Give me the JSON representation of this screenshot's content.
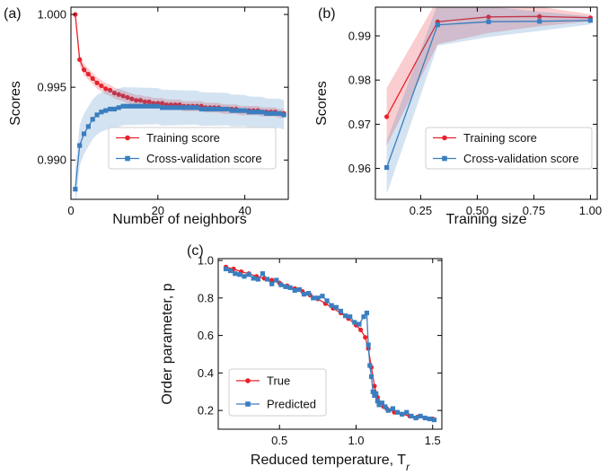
{
  "chart_data": [
    {
      "panel_label": "(a)",
      "type": "line",
      "xlabel": "Number of neighbors",
      "ylabel": "Scores",
      "xlim": [
        0,
        50
      ],
      "ylim": [
        0.9873,
        1.0005
      ],
      "xticks": [
        0,
        20,
        40
      ],
      "yticks": [
        0.99,
        0.995,
        1.0
      ],
      "ytick_format": 3,
      "legend_position": "lower-right",
      "series": [
        {
          "name": "Training score",
          "color": "#e8212b",
          "marker": "circle",
          "x": [
            1,
            2,
            3,
            4,
            5,
            6,
            7,
            8,
            9,
            10,
            11,
            12,
            13,
            14,
            15,
            16,
            17,
            18,
            19,
            20,
            21,
            22,
            23,
            24,
            25,
            26,
            27,
            28,
            29,
            30,
            31,
            32,
            33,
            34,
            35,
            36,
            37,
            38,
            39,
            40,
            41,
            42,
            43,
            44,
            45,
            46,
            47,
            48,
            49
          ],
          "y": [
            1.0,
            0.9969,
            0.9962,
            0.9959,
            0.9956,
            0.9953,
            0.9951,
            0.9949,
            0.9948,
            0.9946,
            0.9945,
            0.9944,
            0.9943,
            0.9942,
            0.9941,
            0.9941,
            0.994,
            0.994,
            0.9939,
            0.9939,
            0.9939,
            0.9938,
            0.9938,
            0.9938,
            0.9938,
            0.9937,
            0.9937,
            0.9937,
            0.9937,
            0.9937,
            0.9936,
            0.9936,
            0.9936,
            0.9936,
            0.9935,
            0.9935,
            0.9935,
            0.9935,
            0.9934,
            0.9934,
            0.9934,
            0.9934,
            0.9934,
            0.9933,
            0.9933,
            0.9933,
            0.9933,
            0.9932,
            0.9932
          ],
          "band": [
            0.0004,
            0.0003
          ]
        },
        {
          "name": "Cross-validation score",
          "color": "#3a7ebf",
          "marker": "square",
          "x": [
            1,
            2,
            3,
            4,
            5,
            6,
            7,
            8,
            9,
            10,
            11,
            12,
            13,
            14,
            15,
            16,
            17,
            18,
            19,
            20,
            21,
            22,
            23,
            24,
            25,
            26,
            27,
            28,
            29,
            30,
            31,
            32,
            33,
            34,
            35,
            36,
            37,
            38,
            39,
            40,
            41,
            42,
            43,
            44,
            45,
            46,
            47,
            48,
            49
          ],
          "y": [
            0.988,
            0.991,
            0.9918,
            0.9923,
            0.9928,
            0.9931,
            0.9933,
            0.9934,
            0.9935,
            0.9935,
            0.9936,
            0.9937,
            0.9937,
            0.9937,
            0.9937,
            0.9937,
            0.9937,
            0.9937,
            0.9937,
            0.9937,
            0.9936,
            0.9936,
            0.9936,
            0.9936,
            0.9936,
            0.9936,
            0.9936,
            0.9936,
            0.9936,
            0.9935,
            0.9935,
            0.9935,
            0.9935,
            0.9935,
            0.9935,
            0.9935,
            0.9934,
            0.9934,
            0.9934,
            0.9934,
            0.9933,
            0.9933,
            0.9933,
            0.9933,
            0.9932,
            0.9932,
            0.9932,
            0.9932,
            0.9931
          ],
          "band": [
            0.0014,
            0.001
          ]
        }
      ]
    },
    {
      "panel_label": "(b)",
      "type": "line",
      "xlabel": "Training size",
      "ylabel": "Scores",
      "xlim": [
        0.05,
        1.03
      ],
      "ylim": [
        0.953,
        0.9965
      ],
      "xticks": [
        0.25,
        0.5,
        0.75,
        1.0
      ],
      "xtick_format": 2,
      "yticks": [
        0.96,
        0.97,
        0.98,
        0.99
      ],
      "ytick_format": 2,
      "legend_position": "lower-right",
      "series": [
        {
          "name": "Training score",
          "color": "#e8212b",
          "marker": "circle",
          "x": [
            0.1,
            0.325,
            0.55,
            0.775,
            1.0
          ],
          "y": [
            0.9717,
            0.9932,
            0.9943,
            0.9944,
            0.9941
          ],
          "band": [
            0.0065,
            0.0008
          ]
        },
        {
          "name": "Cross-validation score",
          "color": "#3a7ebf",
          "marker": "square",
          "x": [
            0.1,
            0.325,
            0.55,
            0.775,
            1.0
          ],
          "y": [
            0.9602,
            0.9925,
            0.9932,
            0.9933,
            0.9935
          ],
          "band": [
            0.006,
            0.0009
          ]
        }
      ]
    },
    {
      "panel_label": "(c)",
      "type": "line",
      "xlabel": "Reduced temperature, T",
      "xlabel_sub": "r",
      "ylabel": "Order parameter, p",
      "xlim": [
        0.1,
        1.56
      ],
      "ylim": [
        0.1,
        1.01
      ],
      "xticks": [
        0.5,
        1.0,
        1.5
      ],
      "xtick_format": 1,
      "yticks": [
        0.2,
        0.4,
        0.6,
        0.8,
        1.0
      ],
      "ytick_format": 1,
      "legend_position": "lower-left",
      "series": [
        {
          "name": "True",
          "color": "#e8212b",
          "marker": "circle",
          "x": [
            0.15,
            0.2,
            0.25,
            0.3,
            0.35,
            0.4,
            0.45,
            0.5,
            0.55,
            0.6,
            0.65,
            0.7,
            0.75,
            0.8,
            0.85,
            0.9,
            0.95,
            1.0,
            1.03,
            1.06,
            1.08,
            1.1,
            1.12,
            1.14,
            1.16,
            1.18,
            1.2,
            1.25,
            1.3,
            1.35,
            1.4,
            1.45,
            1.5
          ],
          "y": [
            0.965,
            0.955,
            0.94,
            0.93,
            0.915,
            0.905,
            0.895,
            0.88,
            0.865,
            0.85,
            0.835,
            0.815,
            0.795,
            0.77,
            0.745,
            0.72,
            0.69,
            0.655,
            0.63,
            0.59,
            0.53,
            0.43,
            0.33,
            0.27,
            0.24,
            0.22,
            0.21,
            0.19,
            0.18,
            0.17,
            0.165,
            0.16,
            0.155
          ]
        },
        {
          "name": "Predicted",
          "color": "#3a7ebf",
          "marker": "square",
          "x": [
            0.15,
            0.18,
            0.21,
            0.24,
            0.27,
            0.3,
            0.33,
            0.36,
            0.39,
            0.42,
            0.45,
            0.48,
            0.51,
            0.54,
            0.57,
            0.6,
            0.63,
            0.66,
            0.69,
            0.72,
            0.75,
            0.78,
            0.81,
            0.84,
            0.87,
            0.9,
            0.93,
            0.96,
            0.99,
            1.02,
            1.05,
            1.07,
            1.08,
            1.09,
            1.1,
            1.11,
            1.12,
            1.13,
            1.14,
            1.15,
            1.17,
            1.19,
            1.21,
            1.24,
            1.27,
            1.3,
            1.33,
            1.36,
            1.39,
            1.42,
            1.45,
            1.48,
            1.51
          ],
          "y": [
            0.955,
            0.945,
            0.93,
            0.925,
            0.915,
            0.925,
            0.905,
            0.9,
            0.93,
            0.9,
            0.875,
            0.895,
            0.87,
            0.86,
            0.855,
            0.84,
            0.845,
            0.82,
            0.825,
            0.8,
            0.8,
            0.81,
            0.785,
            0.76,
            0.75,
            0.73,
            0.705,
            0.7,
            0.67,
            0.66,
            0.7,
            0.72,
            0.55,
            0.44,
            0.38,
            0.3,
            0.28,
            0.29,
            0.25,
            0.23,
            0.24,
            0.22,
            0.2,
            0.21,
            0.19,
            0.18,
            0.19,
            0.17,
            0.16,
            0.17,
            0.16,
            0.155,
            0.15
          ]
        }
      ]
    }
  ]
}
